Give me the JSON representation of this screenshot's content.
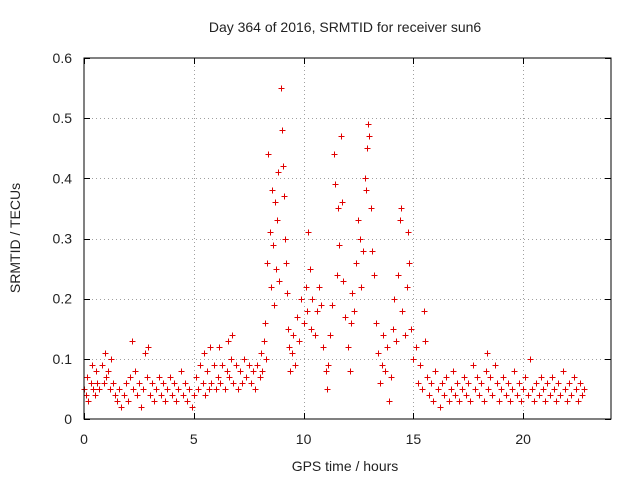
{
  "colors": {
    "series": "#e00000",
    "grid": "#a0a0a0",
    "axis": "#000000"
  },
  "chart_data": {
    "type": "scatter",
    "title": "Day 364 of 2016, SRMTID for receiver sun6",
    "xlabel": "GPS time / hours",
    "ylabel": "SRMTID / TECUs",
    "xlim": [
      0,
      24
    ],
    "ylim": [
      0,
      0.6
    ],
    "xticks": [
      0,
      5,
      10,
      15,
      20
    ],
    "xtick_labels": [
      "0",
      "5",
      "10",
      "15",
      "20"
    ],
    "yticks": [
      0,
      0.1,
      0.2,
      0.3,
      0.4,
      0.5,
      0.6
    ],
    "ytick_labels": [
      "0",
      "0.1",
      "0.2",
      "0.3",
      "0.4",
      "0.5",
      "0.6"
    ],
    "grid": true,
    "marker": "plus",
    "series": [
      {
        "name": "SRMTID",
        "points": [
          [
            0.0,
            0.05
          ],
          [
            0.1,
            0.04
          ],
          [
            0.15,
            0.07
          ],
          [
            0.2,
            0.03
          ],
          [
            0.3,
            0.06
          ],
          [
            0.35,
            0.09
          ],
          [
            0.4,
            0.05
          ],
          [
            0.5,
            0.04
          ],
          [
            0.55,
            0.08
          ],
          [
            0.6,
            0.06
          ],
          [
            0.7,
            0.05
          ],
          [
            0.8,
            0.09
          ],
          [
            0.9,
            0.06
          ],
          [
            0.95,
            0.11
          ],
          [
            1.0,
            0.07
          ],
          [
            1.1,
            0.08
          ],
          [
            1.2,
            0.05
          ],
          [
            1.25,
            0.1
          ],
          [
            1.3,
            0.06
          ],
          [
            1.4,
            0.04
          ],
          [
            1.5,
            0.03
          ],
          [
            1.6,
            0.05
          ],
          [
            1.7,
            0.02
          ],
          [
            1.8,
            0.04
          ],
          [
            1.9,
            0.06
          ],
          [
            2.0,
            0.03
          ],
          [
            2.1,
            0.07
          ],
          [
            2.2,
            0.13
          ],
          [
            2.25,
            0.05
          ],
          [
            2.3,
            0.08
          ],
          [
            2.4,
            0.04
          ],
          [
            2.5,
            0.06
          ],
          [
            2.6,
            0.02
          ],
          [
            2.7,
            0.05
          ],
          [
            2.8,
            0.11
          ],
          [
            2.85,
            0.07
          ],
          [
            2.9,
            0.12
          ],
          [
            3.0,
            0.04
          ],
          [
            3.1,
            0.06
          ],
          [
            3.2,
            0.03
          ],
          [
            3.3,
            0.05
          ],
          [
            3.4,
            0.07
          ],
          [
            3.5,
            0.04
          ],
          [
            3.6,
            0.06
          ],
          [
            3.7,
            0.03
          ],
          [
            3.8,
            0.05
          ],
          [
            3.9,
            0.07
          ],
          [
            4.0,
            0.04
          ],
          [
            4.1,
            0.06
          ],
          [
            4.2,
            0.03
          ],
          [
            4.3,
            0.05
          ],
          [
            4.4,
            0.08
          ],
          [
            4.5,
            0.04
          ],
          [
            4.6,
            0.06
          ],
          [
            4.7,
            0.03
          ],
          [
            4.8,
            0.05
          ],
          [
            4.9,
            0.02
          ],
          [
            5.0,
            0.04
          ],
          [
            5.1,
            0.07
          ],
          [
            5.2,
            0.05
          ],
          [
            5.3,
            0.09
          ],
          [
            5.4,
            0.06
          ],
          [
            5.45,
            0.11
          ],
          [
            5.5,
            0.04
          ],
          [
            5.6,
            0.08
          ],
          [
            5.7,
            0.05
          ],
          [
            5.75,
            0.12
          ],
          [
            5.8,
            0.06
          ],
          [
            5.9,
            0.09
          ],
          [
            6.0,
            0.05
          ],
          [
            6.1,
            0.07
          ],
          [
            6.15,
            0.12
          ],
          [
            6.2,
            0.06
          ],
          [
            6.3,
            0.09
          ],
          [
            6.4,
            0.05
          ],
          [
            6.5,
            0.08
          ],
          [
            6.55,
            0.13
          ],
          [
            6.6,
            0.07
          ],
          [
            6.7,
            0.1
          ],
          [
            6.75,
            0.14
          ],
          [
            6.8,
            0.06
          ],
          [
            6.9,
            0.09
          ],
          [
            7.0,
            0.05
          ],
          [
            7.1,
            0.08
          ],
          [
            7.2,
            0.06
          ],
          [
            7.3,
            0.1
          ],
          [
            7.4,
            0.07
          ],
          [
            7.5,
            0.09
          ],
          [
            7.6,
            0.06
          ],
          [
            7.7,
            0.08
          ],
          [
            7.8,
            0.05
          ],
          [
            7.9,
            0.09
          ],
          [
            8.0,
            0.07
          ],
          [
            8.05,
            0.11
          ],
          [
            8.1,
            0.08
          ],
          [
            8.2,
            0.13
          ],
          [
            8.25,
            0.16
          ],
          [
            8.3,
            0.1
          ],
          [
            8.35,
            0.26
          ],
          [
            8.4,
            0.44
          ],
          [
            8.45,
            0.31
          ],
          [
            8.5,
            0.22
          ],
          [
            8.55,
            0.38
          ],
          [
            8.6,
            0.29
          ],
          [
            8.65,
            0.19
          ],
          [
            8.7,
            0.36
          ],
          [
            8.75,
            0.25
          ],
          [
            8.8,
            0.33
          ],
          [
            8.85,
            0.41
          ],
          [
            8.9,
            0.23
          ],
          [
            8.95,
            0.55
          ],
          [
            9.0,
            0.48
          ],
          [
            9.05,
            0.42
          ],
          [
            9.1,
            0.37
          ],
          [
            9.15,
            0.3
          ],
          [
            9.2,
            0.26
          ],
          [
            9.25,
            0.21
          ],
          [
            9.3,
            0.15
          ],
          [
            9.35,
            0.12
          ],
          [
            9.4,
            0.08
          ],
          [
            9.45,
            0.11
          ],
          [
            9.5,
            0.14
          ],
          [
            9.6,
            0.09
          ],
          [
            9.7,
            0.17
          ],
          [
            9.8,
            0.13
          ],
          [
            9.9,
            0.2
          ],
          [
            10.0,
            0.16
          ],
          [
            10.1,
            0.22
          ],
          [
            10.15,
            0.18
          ],
          [
            10.2,
            0.31
          ],
          [
            10.3,
            0.25
          ],
          [
            10.35,
            0.15
          ],
          [
            10.4,
            0.2
          ],
          [
            10.5,
            0.14
          ],
          [
            10.6,
            0.18
          ],
          [
            10.7,
            0.22
          ],
          [
            10.8,
            0.19
          ],
          [
            10.9,
            0.12
          ],
          [
            11.0,
            0.08
          ],
          [
            11.05,
            0.05
          ],
          [
            11.1,
            0.09
          ],
          [
            11.2,
            0.14
          ],
          [
            11.3,
            0.19
          ],
          [
            11.4,
            0.44
          ],
          [
            11.45,
            0.39
          ],
          [
            11.5,
            0.24
          ],
          [
            11.55,
            0.35
          ],
          [
            11.6,
            0.29
          ],
          [
            11.7,
            0.47
          ],
          [
            11.75,
            0.36
          ],
          [
            11.8,
            0.23
          ],
          [
            11.9,
            0.17
          ],
          [
            12.0,
            0.12
          ],
          [
            12.1,
            0.08
          ],
          [
            12.15,
            0.16
          ],
          [
            12.2,
            0.21
          ],
          [
            12.3,
            0.18
          ],
          [
            12.4,
            0.26
          ],
          [
            12.5,
            0.33
          ],
          [
            12.55,
            0.3
          ],
          [
            12.6,
            0.22
          ],
          [
            12.7,
            0.28
          ],
          [
            12.8,
            0.4
          ],
          [
            12.85,
            0.38
          ],
          [
            12.9,
            0.45
          ],
          [
            12.95,
            0.49
          ],
          [
            13.0,
            0.47
          ],
          [
            13.05,
            0.35
          ],
          [
            13.1,
            0.28
          ],
          [
            13.2,
            0.24
          ],
          [
            13.3,
            0.16
          ],
          [
            13.4,
            0.11
          ],
          [
            13.5,
            0.06
          ],
          [
            13.55,
            0.09
          ],
          [
            13.6,
            0.14
          ],
          [
            13.7,
            0.08
          ],
          [
            13.8,
            0.12
          ],
          [
            13.9,
            0.03
          ],
          [
            14.0,
            0.07
          ],
          [
            14.05,
            0.15
          ],
          [
            14.1,
            0.2
          ],
          [
            14.2,
            0.13
          ],
          [
            14.3,
            0.24
          ],
          [
            14.4,
            0.33
          ],
          [
            14.45,
            0.35
          ],
          [
            14.5,
            0.18
          ],
          [
            14.6,
            0.14
          ],
          [
            14.7,
            0.22
          ],
          [
            14.75,
            0.31
          ],
          [
            14.8,
            0.26
          ],
          [
            14.9,
            0.15
          ],
          [
            15.0,
            0.1
          ],
          [
            15.1,
            0.12
          ],
          [
            15.2,
            0.06
          ],
          [
            15.3,
            0.09
          ],
          [
            15.4,
            0.05
          ],
          [
            15.5,
            0.18
          ],
          [
            15.55,
            0.13
          ],
          [
            15.6,
            0.07
          ],
          [
            15.7,
            0.04
          ],
          [
            15.8,
            0.06
          ],
          [
            15.9,
            0.03
          ],
          [
            16.0,
            0.08
          ],
          [
            16.1,
            0.05
          ],
          [
            16.2,
            0.02
          ],
          [
            16.3,
            0.06
          ],
          [
            16.4,
            0.04
          ],
          [
            16.5,
            0.07
          ],
          [
            16.6,
            0.03
          ],
          [
            16.7,
            0.05
          ],
          [
            16.8,
            0.08
          ],
          [
            16.9,
            0.04
          ],
          [
            17.0,
            0.06
          ],
          [
            17.1,
            0.03
          ],
          [
            17.2,
            0.05
          ],
          [
            17.3,
            0.07
          ],
          [
            17.4,
            0.04
          ],
          [
            17.5,
            0.06
          ],
          [
            17.6,
            0.03
          ],
          [
            17.7,
            0.09
          ],
          [
            17.8,
            0.05
          ],
          [
            17.9,
            0.07
          ],
          [
            18.0,
            0.04
          ],
          [
            18.1,
            0.06
          ],
          [
            18.2,
            0.03
          ],
          [
            18.3,
            0.08
          ],
          [
            18.35,
            0.11
          ],
          [
            18.4,
            0.05
          ],
          [
            18.5,
            0.07
          ],
          [
            18.6,
            0.04
          ],
          [
            18.7,
            0.09
          ],
          [
            18.8,
            0.06
          ],
          [
            18.9,
            0.03
          ],
          [
            19.0,
            0.05
          ],
          [
            19.1,
            0.07
          ],
          [
            19.2,
            0.04
          ],
          [
            19.3,
            0.06
          ],
          [
            19.4,
            0.03
          ],
          [
            19.5,
            0.05
          ],
          [
            19.6,
            0.08
          ],
          [
            19.7,
            0.04
          ],
          [
            19.8,
            0.06
          ],
          [
            19.9,
            0.03
          ],
          [
            20.0,
            0.05
          ],
          [
            20.1,
            0.07
          ],
          [
            20.2,
            0.04
          ],
          [
            20.3,
            0.1
          ],
          [
            20.4,
            0.05
          ],
          [
            20.5,
            0.03
          ],
          [
            20.6,
            0.06
          ],
          [
            20.7,
            0.04
          ],
          [
            20.8,
            0.07
          ],
          [
            20.9,
            0.05
          ],
          [
            21.0,
            0.03
          ],
          [
            21.1,
            0.06
          ],
          [
            21.2,
            0.04
          ],
          [
            21.3,
            0.07
          ],
          [
            21.4,
            0.05
          ],
          [
            21.5,
            0.03
          ],
          [
            21.6,
            0.06
          ],
          [
            21.7,
            0.04
          ],
          [
            21.8,
            0.08
          ],
          [
            21.9,
            0.05
          ],
          [
            22.0,
            0.03
          ],
          [
            22.1,
            0.06
          ],
          [
            22.2,
            0.04
          ],
          [
            22.3,
            0.07
          ],
          [
            22.4,
            0.05
          ],
          [
            22.5,
            0.03
          ],
          [
            22.6,
            0.06
          ],
          [
            22.7,
            0.04
          ],
          [
            22.75,
            0.05
          ]
        ]
      }
    ]
  }
}
